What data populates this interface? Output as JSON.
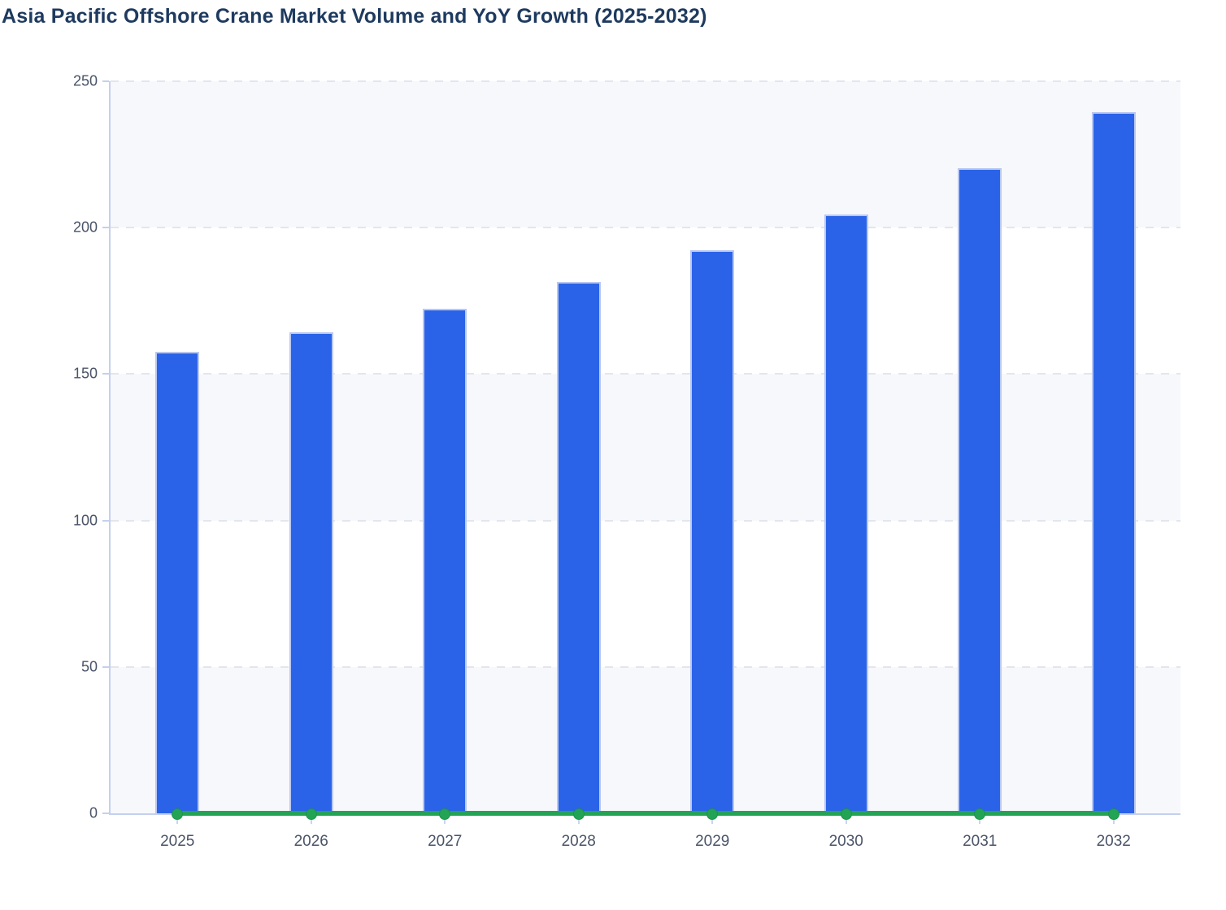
{
  "title": "Asia Pacific Offshore Crane Market Volume and YoY Growth (2025-2032)",
  "colors": {
    "bar_fill": "#2a63e8",
    "bar_border": "#b9c8f2",
    "line_green": "#23a455",
    "band_light": "#f7f8fb",
    "gridline": "#e2e6ee",
    "axis_line": "#c5d0ee",
    "tick_label": "#4a5468",
    "title_text": "#1e3a5f"
  },
  "chart_data": {
    "type": "bar",
    "title": "Asia Pacific Offshore Crane Market Volume and YoY Growth (2025-2032)",
    "categories": [
      "2025",
      "2026",
      "2027",
      "2028",
      "2029",
      "2030",
      "2031",
      "2032"
    ],
    "series": [
      {
        "name": "Market Volume",
        "type": "bar",
        "color": "#2a63e8",
        "values": [
          157.5,
          164.3,
          172.3,
          181.4,
          192.4,
          204.4,
          220.4,
          239.5
        ]
      },
      {
        "name": "YoY Growth",
        "type": "line",
        "color": "#23a455",
        "values": [
          0,
          0,
          0,
          0,
          0,
          0,
          0,
          0
        ],
        "marker": "circle"
      }
    ],
    "xlabel": "",
    "ylabel": "",
    "ylim": [
      0,
      250
    ],
    "y_ticks": [
      0,
      50,
      100,
      150,
      200,
      250
    ],
    "grid": "horizontal-dashed",
    "background_bands": "alternating-light",
    "legend": "none"
  }
}
